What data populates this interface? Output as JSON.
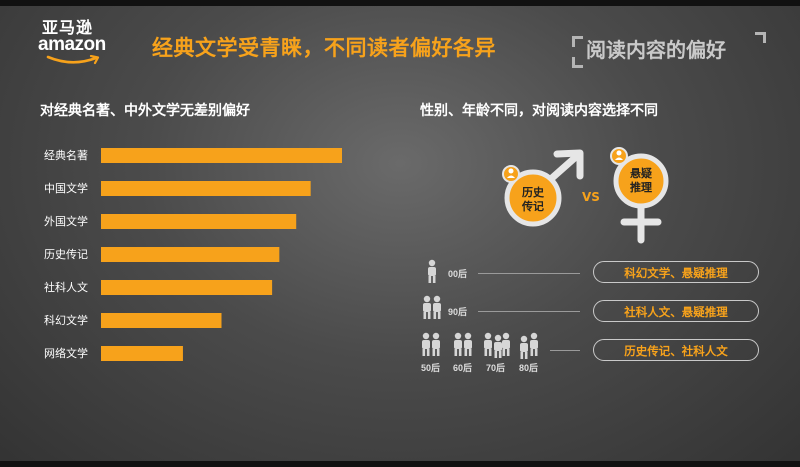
{
  "brand": {
    "cn": "亚马逊",
    "en": "amazon"
  },
  "title": "经典文学受青睐，不同读者偏好各异",
  "section_tag": "阅读内容的偏好",
  "left_subtitle": "对经典名著、中外文学无差别偏好",
  "right_subtitle": "性别、年龄不同，对阅读内容选择不同",
  "colors": {
    "accent": "#f7a21b",
    "bar": "#f7a21b",
    "circle": "#f7a21b"
  },
  "chart_data": {
    "type": "bar",
    "orientation": "horizontal",
    "categories": [
      "经典名著",
      "中国文学",
      "外国文学",
      "历史传记",
      "社科人文",
      "科幻文学",
      "网络文学"
    ],
    "values": [
      100,
      87,
      81,
      74,
      71,
      50,
      34
    ],
    "xlim": [
      0,
      100
    ],
    "grid": false,
    "title": "对经典名著、中外文学无差别偏好"
  },
  "gender": {
    "male_label_line1": "历史",
    "male_label_line2": "传记",
    "female_label_line1": "悬疑",
    "female_label_line2": "推理",
    "vs": "VS"
  },
  "age_rows": [
    {
      "age": "00后",
      "preference": "科幻文学、悬疑推理"
    },
    {
      "age": "90后",
      "preference": "社科人文、悬疑推理"
    },
    {
      "preference": "历史传记、社科人文"
    }
  ],
  "age_group_labels": [
    "50后",
    "60后",
    "70后",
    "80后"
  ]
}
